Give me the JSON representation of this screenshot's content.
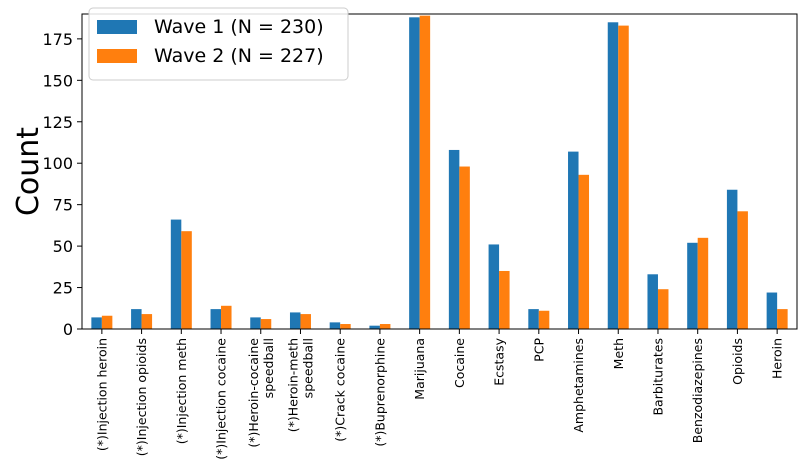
{
  "chart_data": {
    "type": "bar",
    "ylabel": "Count",
    "xlabel": "",
    "ylim": [
      0,
      190
    ],
    "yticks": [
      0,
      25,
      50,
      75,
      100,
      125,
      150,
      175
    ],
    "grid": false,
    "legend_position": "top-left",
    "categories": [
      "(*)Injection heroin",
      "(*)Injection opioids",
      "(*)Injection meth",
      "(*)Injection cocaine",
      "(*)Heroin-cocaine speedball",
      "(*)Heroin-meth speedball",
      "(*)Crack cocaine",
      "(*)Buprenorphine",
      "Marijuana",
      "Cocaine",
      "Ecstasy",
      "PCP",
      "Amphetamines",
      "Meth",
      "Barbiturates",
      "Benzodiazepines",
      "Opioids",
      "Heroin"
    ],
    "category_lines": [
      [
        "(*)Injection heroin"
      ],
      [
        "(*)Injection opioids"
      ],
      [
        "(*)Injection meth"
      ],
      [
        "(*)Injection cocaine"
      ],
      [
        "(*)Heroin-cocaine",
        "speedball"
      ],
      [
        "(*)Heroin-meth",
        "speedball"
      ],
      [
        "(*)Crack cocaine"
      ],
      [
        "(*)Buprenorphine"
      ],
      [
        "Marijuana"
      ],
      [
        "Cocaine"
      ],
      [
        "Ecstasy"
      ],
      [
        "PCP"
      ],
      [
        "Amphetamines"
      ],
      [
        "Meth"
      ],
      [
        "Barbiturates"
      ],
      [
        "Benzodiazepines"
      ],
      [
        "Opioids"
      ],
      [
        "Heroin"
      ]
    ],
    "series": [
      {
        "name": "Wave 1 (N = 230)",
        "color": "#1f77b4",
        "values": [
          7,
          12,
          66,
          12,
          7,
          10,
          4,
          2,
          188,
          108,
          51,
          12,
          107,
          185,
          33,
          52,
          84,
          22
        ]
      },
      {
        "name": "Wave 2 (N = 227)",
        "color": "#ff7f0e",
        "values": [
          8,
          9,
          59,
          14,
          6,
          9,
          3,
          3,
          189,
          98,
          35,
          11,
          93,
          183,
          24,
          55,
          71,
          12
        ]
      }
    ]
  }
}
